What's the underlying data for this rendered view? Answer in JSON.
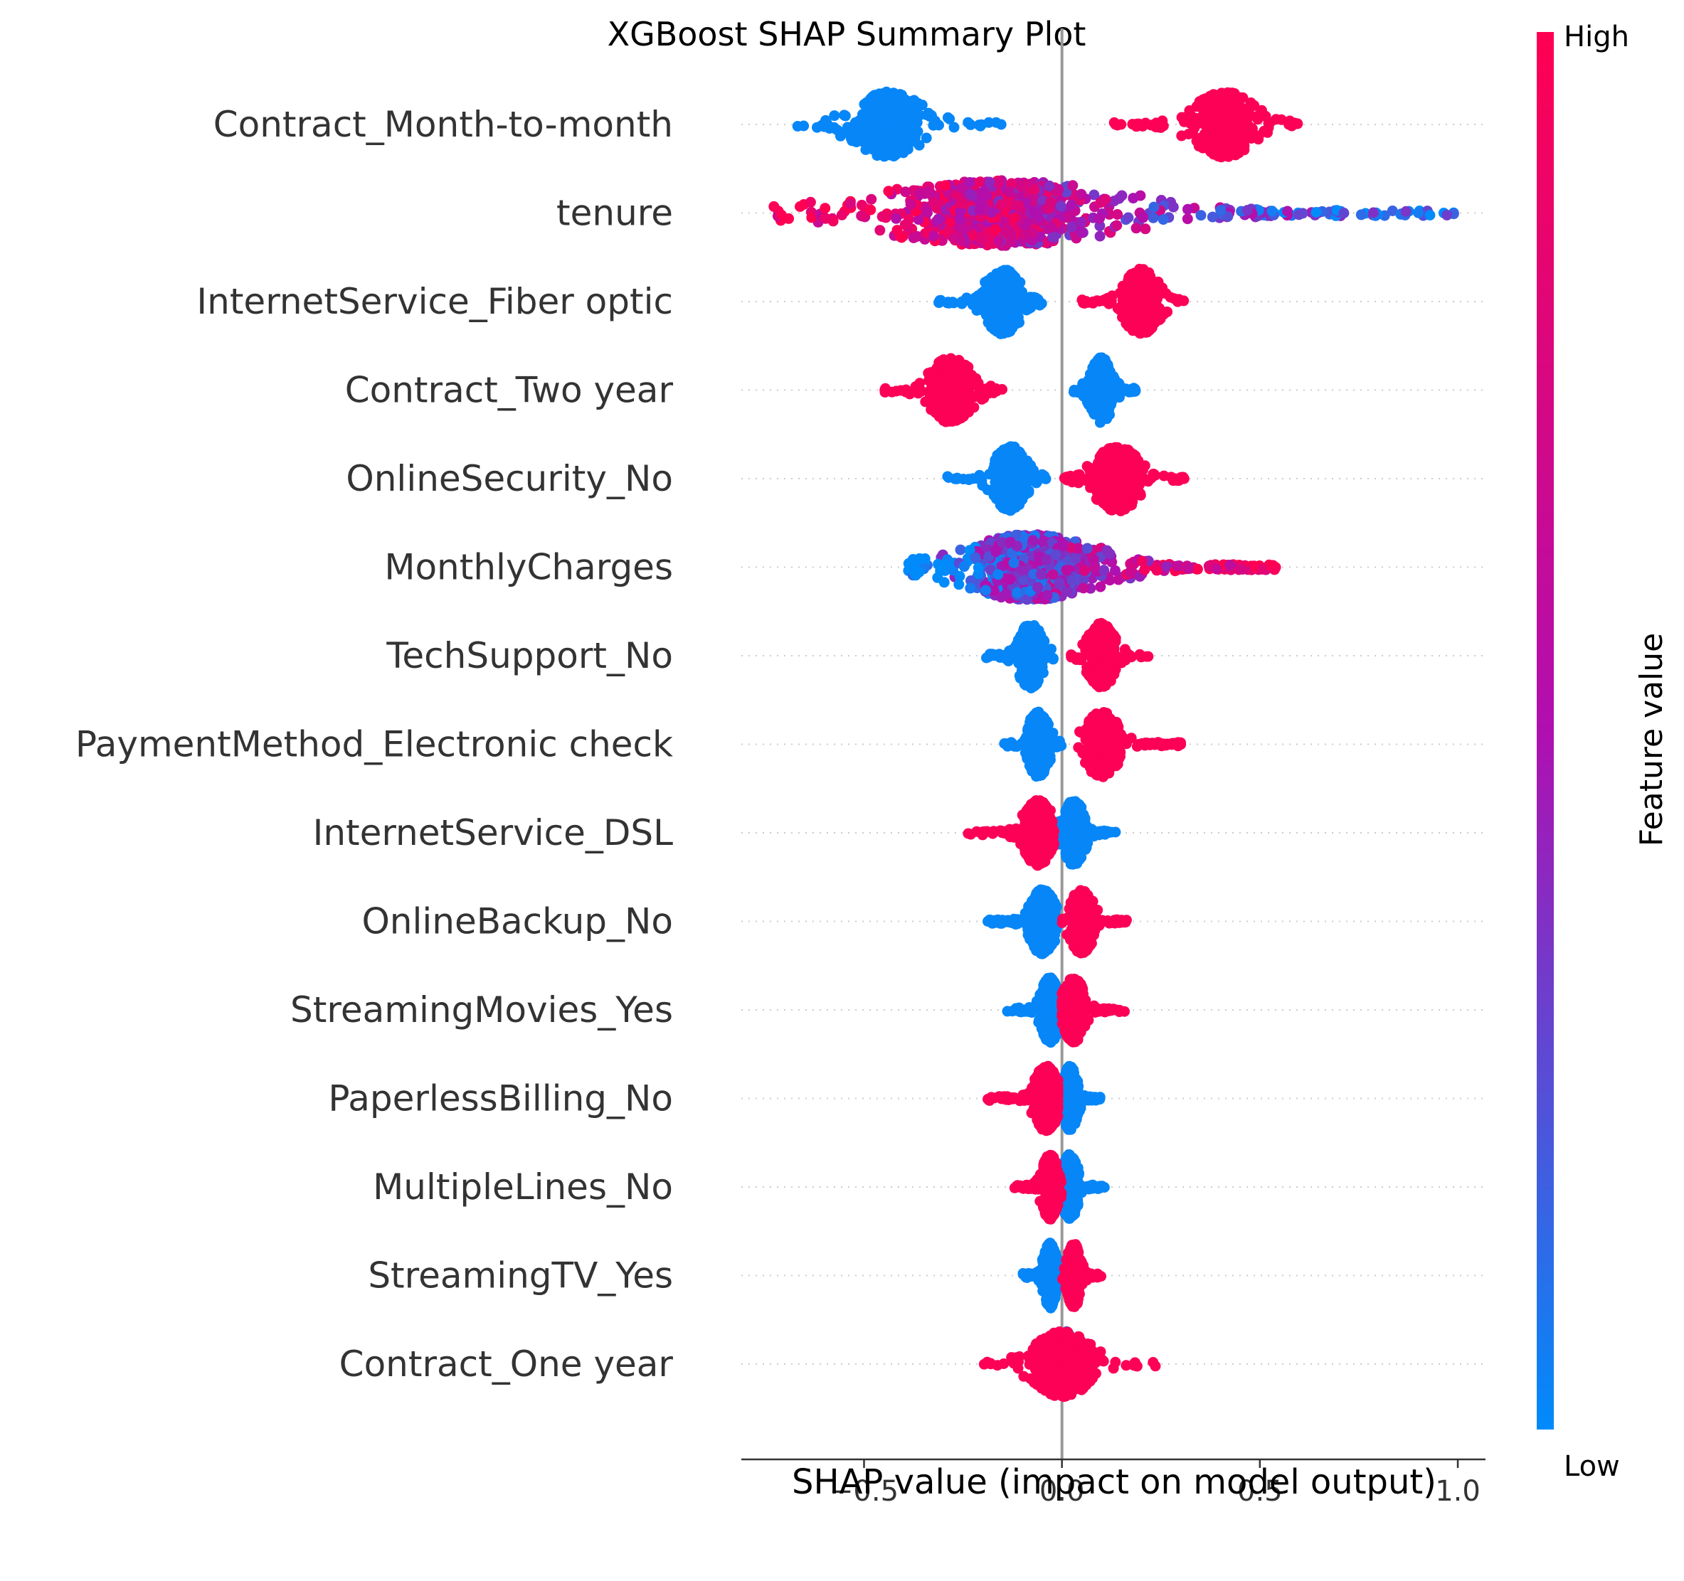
{
  "chart_data": {
    "type": "scatter",
    "subtype": "shap_beeswarm",
    "title": "XGBoost SHAP Summary Plot",
    "xlabel": "SHAP value (impact on model output)",
    "xlim": [
      -0.81,
      1.07
    ],
    "xticks": [
      -0.5,
      0.0,
      0.5,
      1.0
    ],
    "xtick_labels": [
      "−0.5",
      "0.0",
      "0.5",
      "1.0"
    ],
    "colorbar": {
      "label": "Feature value",
      "high_label": "High",
      "low_label": "Low",
      "low_color": "#008bfb",
      "mid_color": "#b00fb0",
      "high_color": "#ff0052"
    },
    "zero_line_color": "#999999",
    "features": [
      {
        "name": "Contract_Month-to-month",
        "low_min": -0.67,
        "low_max": -0.15,
        "low_center": -0.44,
        "high_min": 0.13,
        "high_max": 0.61,
        "high_center": 0.41,
        "kind": "binary"
      },
      {
        "name": "tenure",
        "min": -0.73,
        "max": 0.99,
        "center": -0.16,
        "kind": "continuous_inverse"
      },
      {
        "name": "InternetService_Fiber optic",
        "low_min": -0.32,
        "low_max": -0.05,
        "low_center": -0.15,
        "high_min": 0.05,
        "high_max": 0.31,
        "high_center": 0.2,
        "kind": "binary"
      },
      {
        "name": "Contract_Two year",
        "low_min": 0.03,
        "low_max": 0.19,
        "low_center": 0.1,
        "high_min": -0.47,
        "high_max": -0.15,
        "high_center": -0.28,
        "kind": "binary_inverse"
      },
      {
        "name": "OnlineSecurity_No",
        "low_min": -0.29,
        "low_max": -0.04,
        "low_center": -0.13,
        "high_min": -0.02,
        "high_max": 0.31,
        "high_center": 0.14,
        "kind": "binary"
      },
      {
        "name": "MonthlyCharges",
        "min": -0.4,
        "max": 0.54,
        "center": -0.08,
        "kind": "continuous"
      },
      {
        "name": "TechSupport_No",
        "low_min": -0.2,
        "low_max": -0.02,
        "low_center": -0.08,
        "high_min": 0.02,
        "high_max": 0.22,
        "high_center": 0.1,
        "kind": "binary"
      },
      {
        "name": "PaymentMethod_Electronic check",
        "low_min": -0.16,
        "low_max": 0.0,
        "low_center": -0.06,
        "high_min": 0.04,
        "high_max": 0.3,
        "high_center": 0.1,
        "kind": "binary"
      },
      {
        "name": "InternetService_DSL",
        "low_min": -0.02,
        "low_max": 0.14,
        "low_center": 0.03,
        "high_min": -0.24,
        "high_max": -0.02,
        "high_center": -0.06,
        "kind": "binary_inverse"
      },
      {
        "name": "OnlineBackup_No",
        "low_min": -0.19,
        "low_max": 0.0,
        "low_center": -0.05,
        "high_min": 0.0,
        "high_max": 0.17,
        "high_center": 0.05,
        "kind": "binary"
      },
      {
        "name": "StreamingMovies_Yes",
        "low_min": -0.14,
        "low_max": 0.0,
        "low_center": -0.03,
        "high_min": 0.0,
        "high_max": 0.16,
        "high_center": 0.03,
        "kind": "binary"
      },
      {
        "name": "PaperlessBilling_No",
        "low_min": -0.01,
        "low_max": 0.1,
        "low_center": 0.02,
        "high_min": -0.19,
        "high_max": -0.01,
        "high_center": -0.04,
        "kind": "binary_inverse"
      },
      {
        "name": "MultipleLines_No",
        "low_min": -0.01,
        "low_max": 0.11,
        "low_center": 0.02,
        "high_min": -0.12,
        "high_max": 0.0,
        "high_center": -0.03,
        "kind": "binary_inverse"
      },
      {
        "name": "StreamingTV_Yes",
        "low_min": -0.1,
        "low_max": 0.0,
        "low_center": -0.03,
        "high_min": 0.0,
        "high_max": 0.1,
        "high_center": 0.03,
        "kind": "binary"
      },
      {
        "name": "Contract_One year",
        "low_min": -0.06,
        "low_max": 0.05,
        "low_center": 0.01,
        "high_min": -0.2,
        "high_max": 0.24,
        "high_center": 0.0,
        "kind": "binary_overlap"
      }
    ]
  }
}
